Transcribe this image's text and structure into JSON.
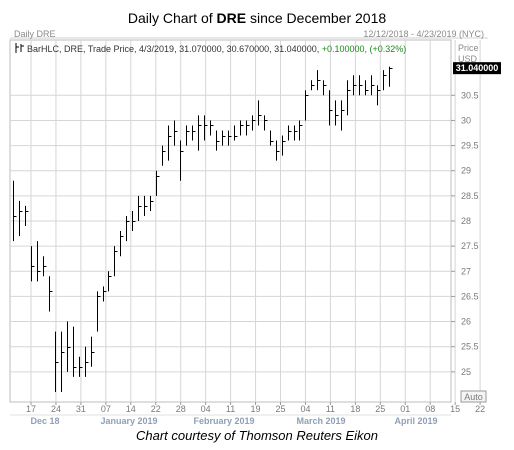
{
  "headline": {
    "prefix": "Daily Chart of ",
    "ticker": "DRE",
    "suffix": " since December 2018"
  },
  "caption": "Chart courtesy of Thomson Reuters Eikon",
  "chart_data": {
    "type": "ohlc",
    "panel_title": "Daily DRE",
    "date_range_label": "12/12/2018 - 4/23/2019 (NYC)",
    "legend": {
      "icon": "ohlc-bar-icon",
      "text": "BarHLC, DRE, Trade Price, 4/3/2019, 31.070000, 30.670000, 31.040000, ",
      "change": "+0.100000, (+0.32%)",
      "change_color": "#1a8a1a"
    },
    "y_axis": {
      "title": "Price",
      "unit": "USD",
      "ticks": [
        "25",
        "25.5",
        "26",
        "26.5",
        "27",
        "27.5",
        "28",
        "28.5",
        "29",
        "29.5",
        "30",
        "30.5"
      ],
      "ylim": [
        24.4,
        31.6
      ],
      "last_price": "31.040000",
      "last_price_value": 31.04,
      "auto_label": "Auto"
    },
    "x_axis": {
      "day_ticks": [
        "17",
        "24",
        "31",
        "07",
        "14",
        "22",
        "28",
        "04",
        "11",
        "19",
        "25",
        "04",
        "11",
        "18",
        "25",
        "01",
        "08",
        "15",
        "22"
      ],
      "month_labels": [
        "Dec 18",
        "January 2019",
        "February 2019",
        "March 2019",
        "April 2019"
      ]
    },
    "colors": {
      "bars": "#000000",
      "grid": "#d6d6d6",
      "last_price_box": "#000000"
    },
    "bars": [
      {
        "h": 28.8,
        "l": 27.6,
        "c": 28.1
      },
      {
        "h": 28.4,
        "l": 27.7,
        "c": 28.2
      },
      {
        "h": 28.3,
        "l": 27.9,
        "c": 28.2
      },
      {
        "h": 27.5,
        "l": 26.8,
        "c": 27.1
      },
      {
        "h": 27.6,
        "l": 26.8,
        "c": 27.0
      },
      {
        "h": 27.3,
        "l": 26.9,
        "c": 27.1
      },
      {
        "h": 26.9,
        "l": 26.2,
        "c": 26.6
      },
      {
        "h": 25.8,
        "l": 24.6,
        "c": 25.2
      },
      {
        "h": 25.8,
        "l": 24.6,
        "c": 25.4
      },
      {
        "h": 26.0,
        "l": 25.0,
        "c": 25.5
      },
      {
        "h": 25.9,
        "l": 24.9,
        "c": 25.1
      },
      {
        "h": 25.3,
        "l": 24.9,
        "c": 25.1
      },
      {
        "h": 25.5,
        "l": 24.9,
        "c": 25.2
      },
      {
        "h": 25.7,
        "l": 25.1,
        "c": 25.4
      },
      {
        "h": 26.6,
        "l": 25.8,
        "c": 26.5
      },
      {
        "h": 26.7,
        "l": 26.4,
        "c": 26.6
      },
      {
        "h": 27.0,
        "l": 26.6,
        "c": 26.9
      },
      {
        "h": 27.5,
        "l": 26.9,
        "c": 27.4
      },
      {
        "h": 27.8,
        "l": 27.3,
        "c": 27.7
      },
      {
        "h": 28.1,
        "l": 27.6,
        "c": 28.0
      },
      {
        "h": 28.2,
        "l": 27.8,
        "c": 28.0
      },
      {
        "h": 28.5,
        "l": 28.0,
        "c": 28.3
      },
      {
        "h": 28.5,
        "l": 28.1,
        "c": 28.3
      },
      {
        "h": 28.5,
        "l": 28.2,
        "c": 28.4
      },
      {
        "h": 29.0,
        "l": 28.5,
        "c": 28.9
      },
      {
        "h": 29.5,
        "l": 29.1,
        "c": 29.4
      },
      {
        "h": 29.9,
        "l": 29.2,
        "c": 29.7
      },
      {
        "h": 30.0,
        "l": 29.5,
        "c": 29.8
      },
      {
        "h": 29.6,
        "l": 28.8,
        "c": 29.4
      },
      {
        "h": 29.9,
        "l": 29.5,
        "c": 29.8
      },
      {
        "h": 29.9,
        "l": 29.6,
        "c": 29.8
      },
      {
        "h": 30.1,
        "l": 29.4,
        "c": 29.9
      },
      {
        "h": 30.1,
        "l": 29.6,
        "c": 29.9
      },
      {
        "h": 30.0,
        "l": 29.7,
        "c": 29.9
      },
      {
        "h": 29.8,
        "l": 29.4,
        "c": 29.6
      },
      {
        "h": 29.8,
        "l": 29.5,
        "c": 29.7
      },
      {
        "h": 29.8,
        "l": 29.5,
        "c": 29.7
      },
      {
        "h": 29.9,
        "l": 29.6,
        "c": 29.7
      },
      {
        "h": 30.0,
        "l": 29.7,
        "c": 29.9
      },
      {
        "h": 30.0,
        "l": 29.7,
        "c": 29.9
      },
      {
        "h": 30.1,
        "l": 29.8,
        "c": 30.0
      },
      {
        "h": 30.4,
        "l": 29.9,
        "c": 30.1
      },
      {
        "h": 30.1,
        "l": 29.8,
        "c": 30.0
      },
      {
        "h": 29.8,
        "l": 29.5,
        "c": 29.6
      },
      {
        "h": 29.6,
        "l": 29.2,
        "c": 29.4
      },
      {
        "h": 29.7,
        "l": 29.3,
        "c": 29.6
      },
      {
        "h": 29.9,
        "l": 29.6,
        "c": 29.8
      },
      {
        "h": 29.9,
        "l": 29.6,
        "c": 29.8
      },
      {
        "h": 30.0,
        "l": 29.6,
        "c": 29.9
      },
      {
        "h": 30.6,
        "l": 30.0,
        "c": 30.5
      },
      {
        "h": 30.8,
        "l": 30.6,
        "c": 30.7
      },
      {
        "h": 31.0,
        "l": 30.6,
        "c": 30.8
      },
      {
        "h": 30.8,
        "l": 30.5,
        "c": 30.7
      },
      {
        "h": 30.6,
        "l": 29.9,
        "c": 30.2
      },
      {
        "h": 30.4,
        "l": 29.9,
        "c": 30.1
      },
      {
        "h": 30.4,
        "l": 29.8,
        "c": 30.2
      },
      {
        "h": 30.8,
        "l": 30.1,
        "c": 30.6
      },
      {
        "h": 30.9,
        "l": 30.5,
        "c": 30.7
      },
      {
        "h": 30.9,
        "l": 30.5,
        "c": 30.7
      },
      {
        "h": 30.8,
        "l": 30.5,
        "c": 30.6
      },
      {
        "h": 30.9,
        "l": 30.5,
        "c": 30.7
      },
      {
        "h": 30.7,
        "l": 30.3,
        "c": 30.6
      },
      {
        "h": 31.0,
        "l": 30.6,
        "c": 30.9
      },
      {
        "h": 31.07,
        "l": 30.67,
        "c": 31.04
      }
    ]
  }
}
